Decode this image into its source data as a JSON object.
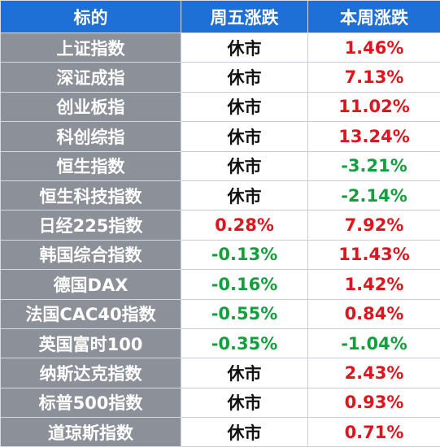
{
  "table": {
    "header": [
      "标的",
      "周五涨跌",
      "本周涨跌"
    ],
    "rows": [
      [
        "上证指数",
        "休市",
        "1.46%"
      ],
      [
        "深证成指",
        "休市",
        "7.13%"
      ],
      [
        "创业板指",
        "休市",
        "11.02%"
      ],
      [
        "科创综指",
        "休市",
        "13.24%"
      ],
      [
        "恒生指数",
        "休市",
        "-3.21%"
      ],
      [
        "恒生科技指数",
        "休市",
        "-2.14%"
      ],
      [
        "日经225指数",
        "0.28%",
        "7.92%"
      ],
      [
        "韩国综合指数",
        "-0.13%",
        "11.43%"
      ],
      [
        "德国DAX",
        "-0.16%",
        "1.42%"
      ],
      [
        "法国CAC40指数",
        "-0.55%",
        "0.84%"
      ],
      [
        "英国富时100",
        "-0.35%",
        "-1.04%"
      ],
      [
        "纳斯达克指数",
        "休市",
        "2.43%"
      ],
      [
        "标普500指数",
        "休市",
        "0.93%"
      ],
      [
        "道琼斯指数",
        "休市",
        "0.71%"
      ]
    ]
  }
}
